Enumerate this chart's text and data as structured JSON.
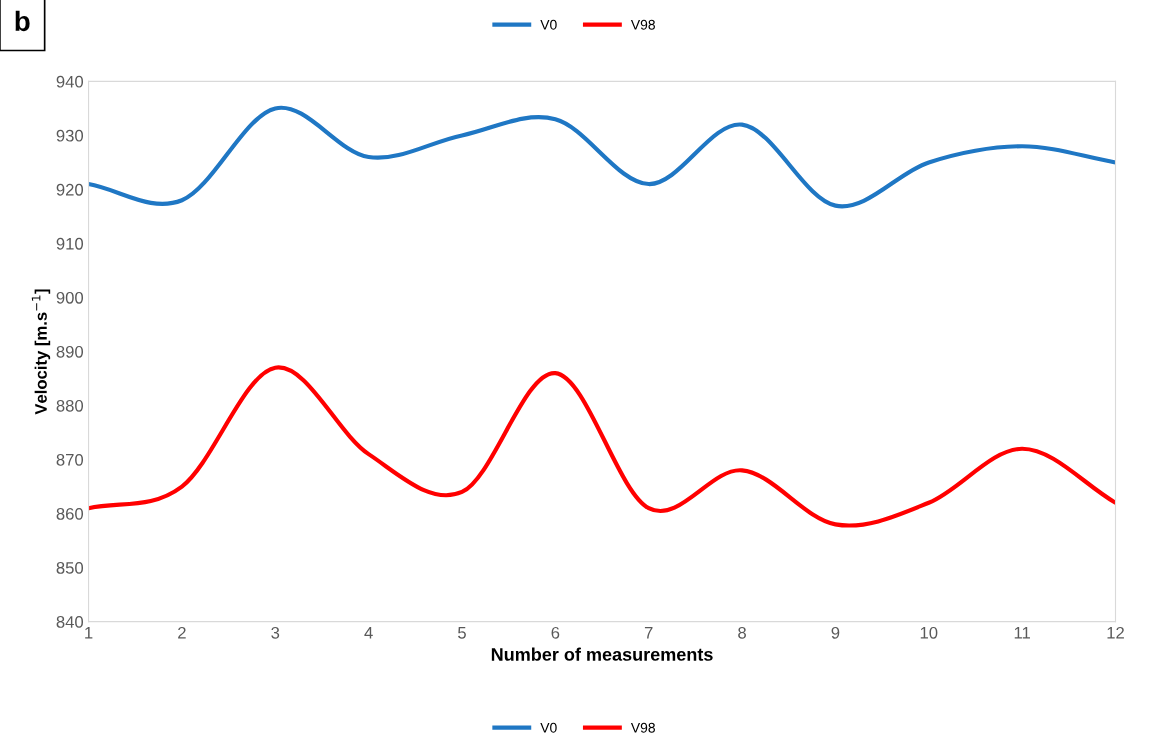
{
  "chart_data": {
    "type": "line",
    "xlabel": "Number of measurements",
    "ylabel": "Velocity [m.s$^{−1}$]",
    "annotations": [
      "b"
    ],
    "x": [
      1,
      2,
      3,
      4,
      5,
      6,
      7,
      8,
      9,
      10,
      11,
      12
    ],
    "series": [
      {
        "name": "V0",
        "color": "#1f77c4",
        "values": [
          921,
          918,
          935,
          926,
          930,
          933,
          921,
          932,
          917,
          925,
          928,
          925
        ]
      },
      {
        "name": "V98",
        "color": "#ff0000",
        "values": [
          861,
          865,
          887,
          871,
          864,
          886,
          861,
          868,
          858,
          862,
          872,
          862
        ]
      }
    ],
    "xlim": [
      1,
      12
    ],
    "xticks": [
      1,
      2,
      3,
      4,
      5,
      6,
      7,
      8,
      9,
      10,
      11,
      12
    ],
    "ylim": [
      840,
      940
    ],
    "yticks": [
      840,
      850,
      860,
      870,
      880,
      890,
      900,
      910,
      920,
      930,
      940
    ],
    "grid": false,
    "legend": [
      "top",
      "bottom"
    ],
    "marker": "none",
    "line_style": "solid"
  }
}
